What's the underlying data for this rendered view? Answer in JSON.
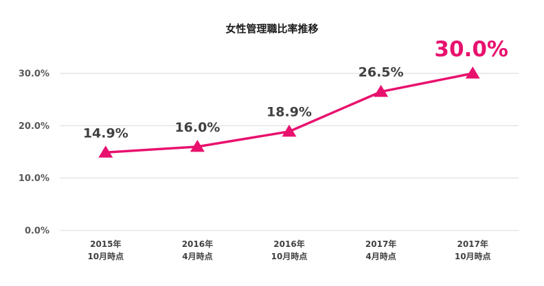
{
  "chart_data": {
    "type": "line",
    "title": "女性管理職比率推移",
    "categories": [
      [
        "2015年",
        "10月時点"
      ],
      [
        "2016年",
        "4月時点"
      ],
      [
        "2016年",
        "10月時点"
      ],
      [
        "2017年",
        "4月時点"
      ],
      [
        "2017年",
        "10月時点"
      ]
    ],
    "values": [
      14.9,
      16.0,
      18.9,
      26.5,
      30.0
    ],
    "data_labels": [
      "14.9%",
      "16.0%",
      "18.9%",
      "26.5%",
      "30.0%"
    ],
    "highlight_index": 4,
    "yticks": [
      {
        "value": 0,
        "label": "0.0%"
      },
      {
        "value": 10,
        "label": "10.0%"
      },
      {
        "value": 20,
        "label": "20.0%"
      },
      {
        "value": 30,
        "label": "30.0%"
      }
    ],
    "ylim": [
      0,
      30
    ],
    "grid": true,
    "legend": "none",
    "marker": "triangle",
    "series_color": "#e8116e",
    "highlight_color": "#e8116e",
    "grid_color": "#d9d9d9"
  }
}
